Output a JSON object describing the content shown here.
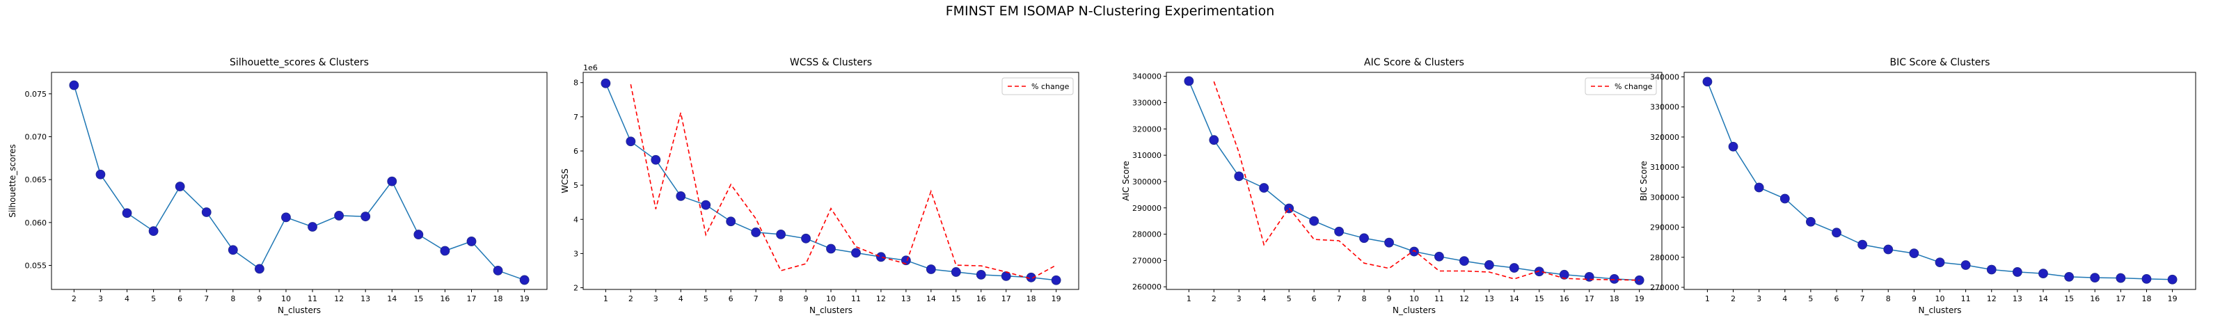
{
  "figure_title": "FMINST EM ISOMAP N-Clustering Experimentation",
  "chart_data": [
    {
      "type": "line",
      "title": "Silhouette_scores & Clusters",
      "xlabel": "N_clusters",
      "ylabel": "Silhouette_scores",
      "x": [
        2,
        3,
        4,
        5,
        6,
        7,
        8,
        9,
        10,
        11,
        12,
        13,
        14,
        15,
        16,
        17,
        18,
        19
      ],
      "xlim": [
        1.15,
        19.85
      ],
      "ylim": [
        0.0522,
        0.0775
      ],
      "yticks": [
        0.055,
        0.06,
        0.065,
        0.07,
        0.075
      ],
      "ytick_labels": [
        "0.055",
        "0.060",
        "0.065",
        "0.070",
        "0.075"
      ],
      "offset_text": "",
      "series": [
        {
          "values": [
            0.076,
            0.0656,
            0.0611,
            0.059,
            0.0642,
            0.0612,
            0.0568,
            0.0546,
            0.0606,
            0.0595,
            0.0608,
            0.0607,
            0.0648,
            0.0586,
            0.0567,
            0.0578,
            0.0544,
            0.0533
          ],
          "color": "#1f77b4",
          "marker_color": "#1f1fbf",
          "style": "solid-markers"
        }
      ],
      "legend": null,
      "grid": false
    },
    {
      "type": "line",
      "title": "WCSS & Clusters",
      "xlabel": "N_clusters",
      "ylabel": "WCSS",
      "x": [
        1,
        2,
        3,
        4,
        5,
        6,
        7,
        8,
        9,
        10,
        11,
        12,
        13,
        14,
        15,
        16,
        17,
        18,
        19
      ],
      "xlim": [
        0.1,
        19.9
      ],
      "ylim": [
        1.95,
        8.3
      ],
      "yticks": [
        2,
        3,
        4,
        5,
        6,
        7,
        8
      ],
      "ytick_labels": [
        "2",
        "3",
        "4",
        "5",
        "6",
        "7",
        "8"
      ],
      "offset_text": "1e6",
      "series": [
        {
          "values": [
            7.98,
            6.28,
            5.74,
            4.68,
            4.42,
            3.94,
            3.62,
            3.56,
            3.44,
            3.14,
            3.02,
            2.9,
            2.8,
            2.54,
            2.46,
            2.38,
            2.34,
            2.3,
            2.22
          ],
          "color": "#1f77b4",
          "marker_color": "#1f1fbf",
          "style": "solid-markers"
        },
        {
          "name": "% change",
          "x": [
            2,
            3,
            4,
            5,
            6,
            7,
            8,
            9,
            10,
            11,
            12,
            13,
            14,
            15,
            16,
            17,
            18,
            19
          ],
          "values": [
            7.95,
            4.3,
            7.12,
            3.55,
            5.02,
            4.02,
            2.5,
            2.7,
            4.32,
            3.2,
            2.9,
            2.7,
            4.82,
            2.66,
            2.64,
            2.46,
            2.26,
            2.66
          ],
          "color": "#ff0000",
          "style": "dashed"
        }
      ],
      "legend": {
        "entries": [
          "% change"
        ],
        "placement": "upper right"
      },
      "grid": false
    },
    {
      "type": "line",
      "title": "AIC Score & Clusters",
      "xlabel": "N_clusters",
      "ylabel": "AIC Score",
      "x": [
        1,
        2,
        3,
        4,
        5,
        6,
        7,
        8,
        9,
        10,
        11,
        12,
        13,
        14,
        15,
        16,
        17,
        18,
        19
      ],
      "xlim": [
        0.1,
        19.9
      ],
      "ylim": [
        259000,
        341500
      ],
      "yticks": [
        260000,
        270000,
        280000,
        290000,
        300000,
        310000,
        320000,
        330000,
        340000
      ],
      "ytick_labels": [
        "260000",
        "270000",
        "280000",
        "290000",
        "300000",
        "310000",
        "320000",
        "330000",
        "340000"
      ],
      "offset_text": "",
      "series": [
        {
          "values": [
            338200,
            315800,
            302000,
            297600,
            289800,
            285000,
            281000,
            278500,
            276800,
            273400,
            271500,
            269800,
            268300,
            267200,
            265800,
            264600,
            263800,
            263000,
            262500
          ],
          "color": "#1f77b4",
          "marker_color": "#1f1fbf",
          "style": "solid-markers"
        },
        {
          "name": "% change",
          "x": [
            2,
            3,
            4,
            5,
            6,
            7,
            8,
            9,
            10,
            11,
            12,
            13,
            14,
            15,
            16,
            17,
            18,
            19
          ],
          "values": [
            338000,
            311000,
            276000,
            290000,
            278000,
            277500,
            269000,
            267000,
            273800,
            266000,
            266000,
            265600,
            263000,
            266000,
            263200,
            262800,
            262700,
            262500
          ],
          "color": "#ff0000",
          "style": "dashed"
        }
      ],
      "legend": {
        "entries": [
          "% change"
        ],
        "placement": "upper right"
      },
      "grid": false
    },
    {
      "type": "line",
      "title": "BIC Score & Clusters",
      "xlabel": "N_clusters",
      "ylabel": "BIC Score",
      "x": [
        1,
        2,
        3,
        4,
        5,
        6,
        7,
        8,
        9,
        10,
        11,
        12,
        13,
        14,
        15,
        16,
        17,
        18,
        19
      ],
      "xlim": [
        0.1,
        19.9
      ],
      "ylim": [
        269300,
        341500
      ],
      "yticks": [
        270000,
        280000,
        290000,
        300000,
        310000,
        320000,
        330000,
        340000
      ],
      "ytick_labels": [
        "270000",
        "280000",
        "290000",
        "300000",
        "310000",
        "320000",
        "330000",
        "340000"
      ],
      "offset_text": "",
      "series": [
        {
          "values": [
            338400,
            316800,
            303200,
            299500,
            291800,
            288200,
            284200,
            282600,
            281300,
            278300,
            277400,
            275900,
            275100,
            274600,
            273500,
            273200,
            273100,
            272800,
            272600
          ],
          "color": "#1f77b4",
          "marker_color": "#1f1fbf",
          "style": "solid-markers"
        }
      ],
      "legend": null,
      "grid": false
    }
  ]
}
